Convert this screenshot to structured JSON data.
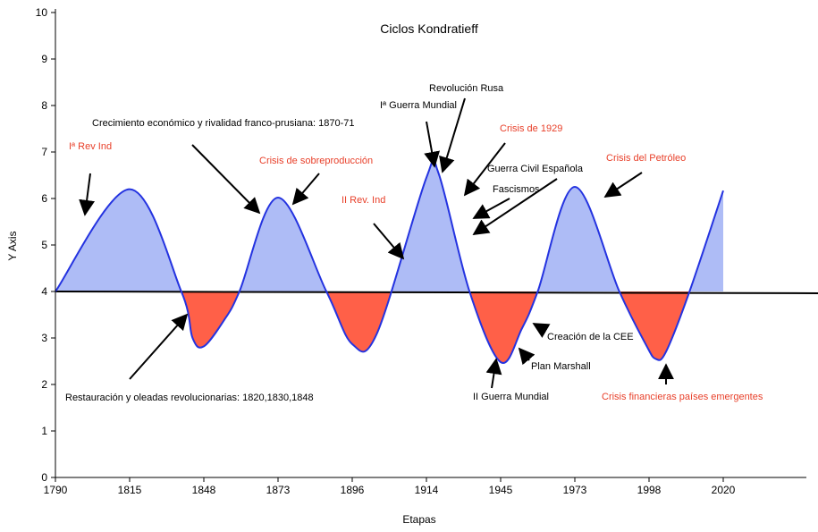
{
  "chart_data": {
    "type": "area",
    "title": "Ciclos Kondratieff",
    "xlabel": "Etapas",
    "ylabel": "Y Axis",
    "xlim": [
      1790,
      2062
    ],
    "ylim": [
      0,
      10
    ],
    "x_ticks": [
      "1790",
      "1815",
      "1848",
      "1873",
      "1896",
      "1914",
      "1945",
      "1973",
      "1998",
      "2020"
    ],
    "y_ticks": [
      "0",
      "1",
      "2",
      "3",
      "4",
      "5",
      "6",
      "7",
      "8",
      "9",
      "10"
    ],
    "grid": false,
    "colors": {
      "above_fill": "#aebcf6",
      "below_fill": "#ff6048",
      "curve": "#2433e0",
      "baseline": "#000000"
    },
    "baseline": {
      "x": [
        1790,
        2062
      ],
      "y": [
        4.0,
        3.96
      ]
    },
    "series": [
      {
        "x": [
          1790,
          1815,
          1838,
          1843,
          1848,
          1855,
          1860,
          1873,
          1888,
          1896,
          1902,
          1914,
          1919,
          1932,
          1945,
          1953,
          1959,
          1973,
          1988,
          1997,
          2000,
          2003,
          2010,
          2020
        ],
        "y": [
          4.0,
          6.2,
          4.0,
          3.0,
          2.82,
          3.4,
          4.0,
          6.02,
          4.0,
          2.87,
          3.1,
          6.45,
          6.55,
          4.0,
          2.48,
          3.2,
          4.0,
          6.25,
          4.0,
          2.85,
          2.55,
          2.7,
          4.0,
          6.17
        ]
      }
    ],
    "annotations": [
      {
        "text": "Iª Rev Ind",
        "color": "red"
      },
      {
        "text": "Crecimiento económico y rivalidad franco-prusiana: 1870-71",
        "color": "black"
      },
      {
        "text": "Crisis de sobreproducción",
        "color": "red"
      },
      {
        "text": "Iª Guerra Mundial",
        "color": "black"
      },
      {
        "text": "Revolución Rusa",
        "color": "black"
      },
      {
        "text": "Crisis de 1929",
        "color": "red"
      },
      {
        "text": "II Rev. Ind",
        "color": "red"
      },
      {
        "text": "Guerra Civil Española",
        "color": "black"
      },
      {
        "text": "Fascismos",
        "color": "black"
      },
      {
        "text": "Crisis del Petróleo",
        "color": "red"
      },
      {
        "text": "Creación de la CEE",
        "color": "black"
      },
      {
        "text": "Plan Marshall",
        "color": "black"
      },
      {
        "text": "II Guerra Mundial",
        "color": "black"
      },
      {
        "text": "Crisis financieras países emergentes",
        "color": "red"
      },
      {
        "text": "Restauración y oleadas revolucionarias: 1820,1830,1848",
        "color": "black"
      }
    ]
  }
}
